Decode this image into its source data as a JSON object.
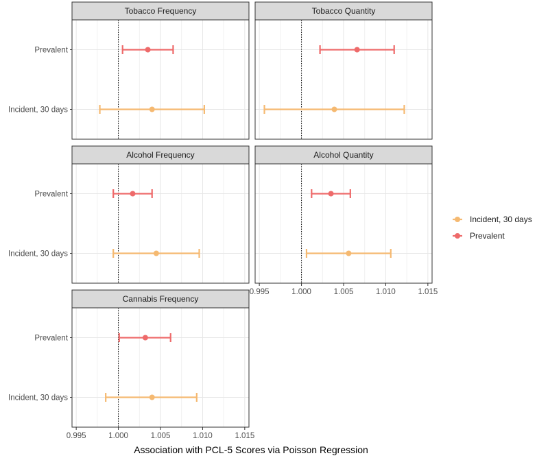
{
  "chart_data": {
    "type": "forest",
    "xlabel": "Association with PCL-5 Scores via Poisson Regression",
    "xlim": [
      0.9945,
      1.0155
    ],
    "xticks": [
      0.995,
      1.0,
      1.005,
      1.01,
      1.015
    ],
    "xtick_labels": [
      "0.995",
      "1.000",
      "1.005",
      "1.010",
      "1.015"
    ],
    "reference_line": 1.0,
    "categories": [
      "Prevalent",
      "Incident, 30 days"
    ],
    "legend": {
      "position": "right",
      "entries": [
        {
          "label": "Incident, 30 days",
          "color": "#F5B971"
        },
        {
          "label": "Prevalent",
          "color": "#EE6A6A"
        }
      ]
    },
    "panels": [
      {
        "title": "Tobacco Frequency",
        "series": [
          {
            "name": "Prevalent",
            "estimate": 1.0035,
            "lower": 1.0005,
            "upper": 1.0065
          },
          {
            "name": "Incident, 30 days",
            "estimate": 1.004,
            "lower": 0.9978,
            "upper": 1.0102
          }
        ]
      },
      {
        "title": "Tobacco Quantity",
        "series": [
          {
            "name": "Prevalent",
            "estimate": 1.0066,
            "lower": 1.0022,
            "upper": 1.011
          },
          {
            "name": "Incident, 30 days",
            "estimate": 1.0039,
            "lower": 0.9956,
            "upper": 1.0122
          }
        ]
      },
      {
        "title": "Alcohol Frequency",
        "series": [
          {
            "name": "Prevalent",
            "estimate": 1.0017,
            "lower": 0.9994,
            "upper": 1.004
          },
          {
            "name": "Incident, 30 days",
            "estimate": 1.0045,
            "lower": 0.9994,
            "upper": 1.0096
          }
        ]
      },
      {
        "title": "Alcohol Quantity",
        "series": [
          {
            "name": "Prevalent",
            "estimate": 1.0035,
            "lower": 1.0012,
            "upper": 1.0058
          },
          {
            "name": "Incident, 30 days",
            "estimate": 1.0056,
            "lower": 1.0006,
            "upper": 1.0106
          }
        ]
      },
      {
        "title": "Cannabis Frequency",
        "series": [
          {
            "name": "Prevalent",
            "estimate": 1.0032,
            "lower": 1.0001,
            "upper": 1.0062
          },
          {
            "name": "Incident, 30 days",
            "estimate": 1.004,
            "lower": 0.9985,
            "upper": 1.0093
          }
        ]
      }
    ]
  }
}
